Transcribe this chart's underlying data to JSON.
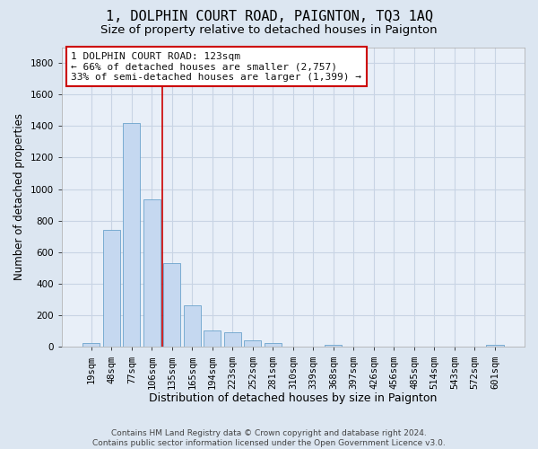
{
  "title1": "1, DOLPHIN COURT ROAD, PAIGNTON, TQ3 1AQ",
  "title2": "Size of property relative to detached houses in Paignton",
  "xlabel": "Distribution of detached houses by size in Paignton",
  "ylabel": "Number of detached properties",
  "bar_labels": [
    "19sqm",
    "48sqm",
    "77sqm",
    "106sqm",
    "135sqm",
    "165sqm",
    "194sqm",
    "223sqm",
    "252sqm",
    "281sqm",
    "310sqm",
    "339sqm",
    "368sqm",
    "397sqm",
    "426sqm",
    "456sqm",
    "485sqm",
    "514sqm",
    "543sqm",
    "572sqm",
    "601sqm"
  ],
  "bar_values": [
    22,
    740,
    1420,
    935,
    530,
    265,
    103,
    92,
    40,
    27,
    0,
    0,
    15,
    0,
    0,
    0,
    0,
    0,
    0,
    0,
    14
  ],
  "bar_color": "#c5d8f0",
  "bar_edge_color": "#6ba3cc",
  "property_line_x": 3.5,
  "property_line_color": "#cc0000",
  "annotation_text": "1 DOLPHIN COURT ROAD: 123sqm\n← 66% of detached houses are smaller (2,757)\n33% of semi-detached houses are larger (1,399) →",
  "annotation_box_facecolor": "#ffffff",
  "annotation_box_edgecolor": "#cc0000",
  "ylim": [
    0,
    1900
  ],
  "yticks": [
    0,
    200,
    400,
    600,
    800,
    1000,
    1200,
    1400,
    1600,
    1800
  ],
  "fig_bg_color": "#dce6f1",
  "plot_bg_color": "#e8eff8",
  "grid_color": "#c8d4e4",
  "title1_fontsize": 11,
  "title2_fontsize": 9.5,
  "xlabel_fontsize": 9,
  "ylabel_fontsize": 8.5,
  "tick_fontsize": 7.5,
  "annotation_fontsize": 8,
  "footer_fontsize": 6.5,
  "footer_line1": "Contains HM Land Registry data © Crown copyright and database right 2024.",
  "footer_line2": "Contains public sector information licensed under the Open Government Licence v3.0."
}
